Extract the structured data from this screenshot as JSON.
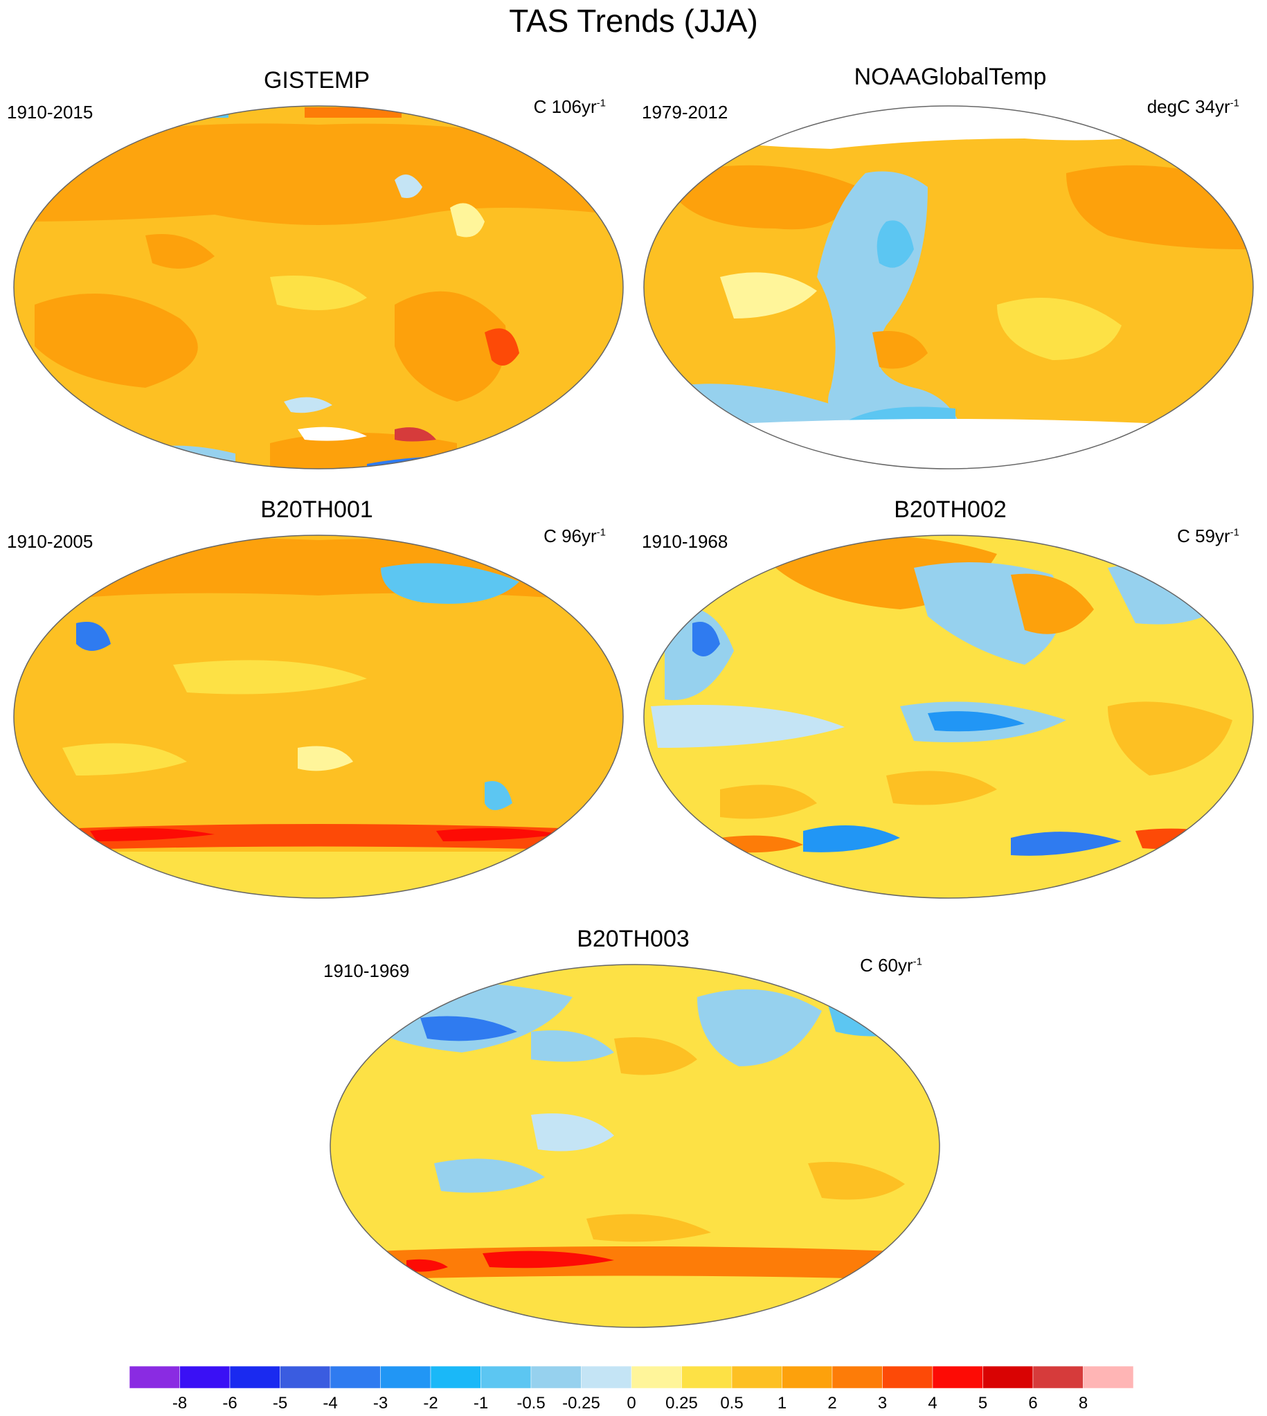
{
  "title": "TAS Trends (JJA)",
  "panels": [
    {
      "id": "gistemp",
      "title": "GISTEMP",
      "period": "1910-2015",
      "units": "C 106yr",
      "units_sup": "-1"
    },
    {
      "id": "noaa",
      "title": "NOAAGlobalTemp",
      "period": "1979-2012",
      "units": "degC 34yr",
      "units_sup": "-1"
    },
    {
      "id": "b20th001",
      "title": "B20TH001",
      "period": "1910-2005",
      "units": "C 96yr",
      "units_sup": "-1"
    },
    {
      "id": "b20th002",
      "title": "B20TH002",
      "period": "1910-1968",
      "units": "C 59yr",
      "units_sup": "-1"
    },
    {
      "id": "b20th003",
      "title": "B20TH003",
      "period": "1910-1969",
      "units": "C 60yr",
      "units_sup": "-1"
    }
  ],
  "colorbar": {
    "labels": [
      "-8",
      "-6",
      "-5",
      "-4",
      "-3",
      "-2",
      "-1",
      "-0.5",
      "-0.25",
      "0",
      "0.25",
      "0.5",
      "1",
      "2",
      "3",
      "4",
      "5",
      "6",
      "8"
    ],
    "colors": [
      "#8a2be2",
      "#3a10f5",
      "#1a2af0",
      "#3a5ce0",
      "#2f7bf0",
      "#2196f5",
      "#1ab8f8",
      "#5cc6f2",
      "#96d1ee",
      "#c4e4f5",
      "#fff59a",
      "#fde145",
      "#fdc023",
      "#fda10c",
      "#fd7c08",
      "#fd4a07",
      "#fd0b05",
      "#d90303",
      "#d63b3b",
      "#ffb5b5"
    ]
  },
  "colors": {
    "ocean_warm": "#fdc023",
    "land_outline": "#666666",
    "no_data": "#ffffff"
  }
}
